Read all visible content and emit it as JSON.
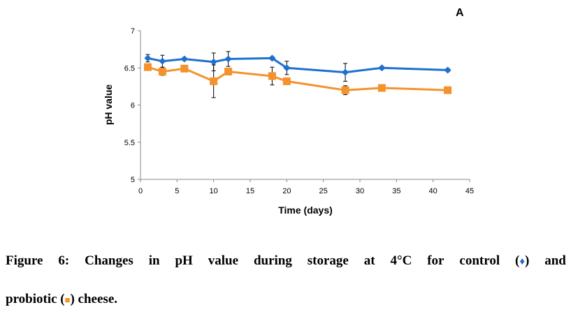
{
  "chart_data": {
    "type": "line",
    "panel_label": "A",
    "xlabel": "Time (days)",
    "ylabel": "pH value",
    "xlim": [
      0,
      45
    ],
    "ylim": [
      5,
      7
    ],
    "xticks": [
      0,
      5,
      10,
      15,
      20,
      25,
      30,
      35,
      40,
      45
    ],
    "yticks": [
      5,
      5.5,
      6,
      6.5,
      7
    ],
    "grid": false,
    "series": [
      {
        "marker": "diamond",
        "color": "#1f6fd0",
        "x": [
          1,
          3,
          6,
          10,
          12,
          18,
          20,
          28,
          33,
          42
        ],
        "y": [
          6.63,
          6.59,
          6.62,
          6.58,
          6.62,
          6.63,
          6.5,
          6.44,
          6.5,
          6.47
        ],
        "error": [
          0.05,
          0.08,
          0.02,
          0.12,
          0.1,
          0.02,
          0.09,
          0.12,
          0.02,
          0.02
        ]
      },
      {
        "marker": "square",
        "color": "#f4922e",
        "x": [
          1,
          3,
          6,
          10,
          12,
          18,
          20,
          28,
          33,
          42
        ],
        "y": [
          6.51,
          6.45,
          6.49,
          6.32,
          6.45,
          6.39,
          6.32,
          6.2,
          6.23,
          6.2
        ],
        "error": [
          0.04,
          0.05,
          0.02,
          0.22,
          0.03,
          0.12,
          0.03,
          0.06,
          0.02,
          0.02
        ]
      }
    ]
  },
  "caption": {
    "words": [
      "Figure",
      "6:",
      "Changes",
      "in",
      "pH",
      "value",
      "during",
      "storage",
      "at",
      "4°C",
      "for",
      "control"
    ],
    "control_symbol": "♦",
    "and_word": "and",
    "line2_prefix": "probiotic (",
    "probiotic_symbol": "■",
    "line2_suffix": ") cheese."
  }
}
